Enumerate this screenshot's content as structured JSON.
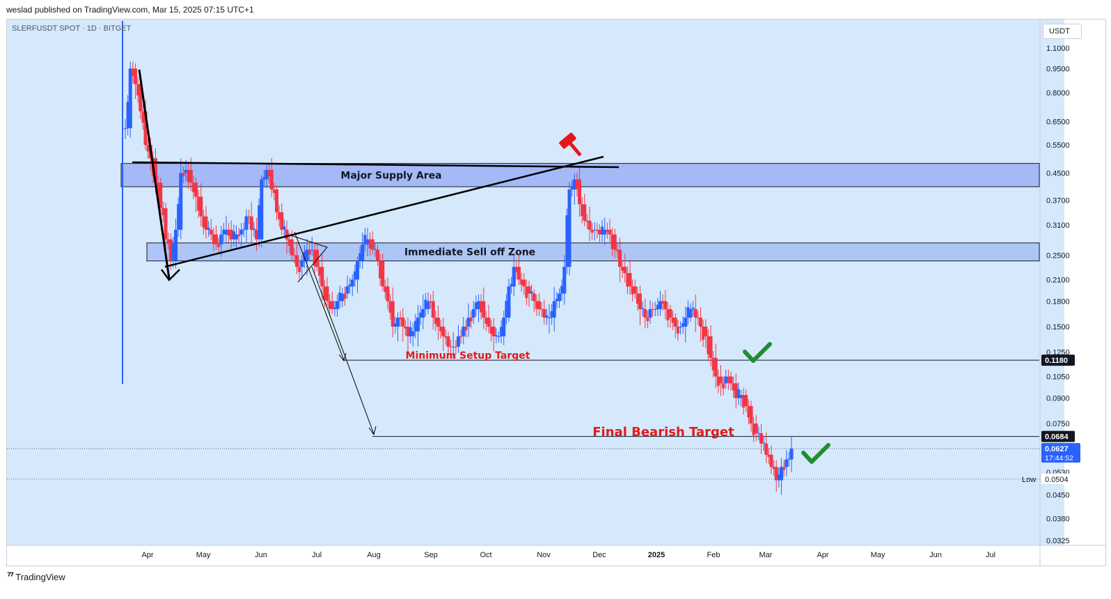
{
  "header": {
    "published": "weslad published on TradingView.com, Mar 15, 2025 07:15 UTC+1"
  },
  "chart_data": {
    "type": "candlestick",
    "symbol": "SLERFUSDT SPOT · 1D · BITGET",
    "currency": "USDT",
    "price_axis": {
      "scale": "log",
      "range": [
        0.031,
        1.25
      ],
      "ticks": [
        "1.1000",
        "0.9500",
        "0.8000",
        "0.6500",
        "0.5500",
        "0.4500",
        "0.3700",
        "0.3100",
        "0.2500",
        "0.2100",
        "0.1800",
        "0.1500",
        "0.1250",
        "0.1050",
        "0.0900",
        "0.0750",
        "0.0630",
        "0.0530",
        "0.0450",
        "0.0380",
        "0.0325"
      ]
    },
    "time_axis": {
      "labels": [
        "Apr",
        "May",
        "Jun",
        "Jul",
        "Aug",
        "Sep",
        "Oct",
        "Nov",
        "Dec",
        "2025",
        "Feb",
        "Mar",
        "Apr",
        "May",
        "Jun",
        "Jul"
      ]
    },
    "price_tags": [
      {
        "label": "0.1180",
        "value": 0.118,
        "style": "dark"
      },
      {
        "label": "0.0684",
        "value": 0.0684,
        "style": "dark"
      },
      {
        "label": "0.0627",
        "sub": "17:44:52",
        "value": 0.0627,
        "style": "current"
      },
      {
        "label": "0.0504",
        "value": 0.0504,
        "style": "low",
        "prefix": "Low"
      }
    ],
    "zones": [
      {
        "label": "Major Supply Area",
        "top": 0.482,
        "bottom": 0.408
      },
      {
        "label": "Immediate Sell off Zone",
        "top": 0.273,
        "bottom": 0.24
      }
    ],
    "annotations": [
      {
        "label": "Minimum Setup Target",
        "value": 0.118,
        "color": "#e01b1b"
      },
      {
        "label": "Final Bearish Target",
        "value": 0.0684,
        "color": "#e01b1b"
      }
    ],
    "series_points": [
      0.62,
      0.95,
      0.85,
      0.7,
      0.55,
      0.5,
      0.42,
      0.35,
      0.28,
      0.24,
      0.3,
      0.45,
      0.46,
      0.42,
      0.38,
      0.33,
      0.3,
      0.29,
      0.27,
      0.29,
      0.3,
      0.28,
      0.29,
      0.3,
      0.33,
      0.3,
      0.28,
      0.43,
      0.46,
      0.4,
      0.34,
      0.3,
      0.28,
      0.25,
      0.23,
      0.24,
      0.26,
      0.26,
      0.23,
      0.2,
      0.18,
      0.17,
      0.18,
      0.19,
      0.2,
      0.21,
      0.24,
      0.27,
      0.28,
      0.26,
      0.24,
      0.2,
      0.18,
      0.15,
      0.16,
      0.15,
      0.14,
      0.145,
      0.16,
      0.17,
      0.18,
      0.16,
      0.15,
      0.14,
      0.13,
      0.13,
      0.14,
      0.15,
      0.16,
      0.17,
      0.18,
      0.16,
      0.15,
      0.14,
      0.14,
      0.16,
      0.2,
      0.23,
      0.21,
      0.2,
      0.19,
      0.18,
      0.17,
      0.16,
      0.16,
      0.18,
      0.19,
      0.23,
      0.4,
      0.43,
      0.36,
      0.32,
      0.3,
      0.3,
      0.29,
      0.3,
      0.29,
      0.26,
      0.23,
      0.22,
      0.2,
      0.19,
      0.17,
      0.16,
      0.17,
      0.17,
      0.18,
      0.17,
      0.16,
      0.15,
      0.15,
      0.16,
      0.17,
      0.16,
      0.15,
      0.14,
      0.12,
      0.105,
      0.1,
      0.105,
      0.1,
      0.09,
      0.092,
      0.085,
      0.075,
      0.07,
      0.065,
      0.06,
      0.055,
      0.05,
      0.055,
      0.058,
      0.0627
    ]
  }
}
